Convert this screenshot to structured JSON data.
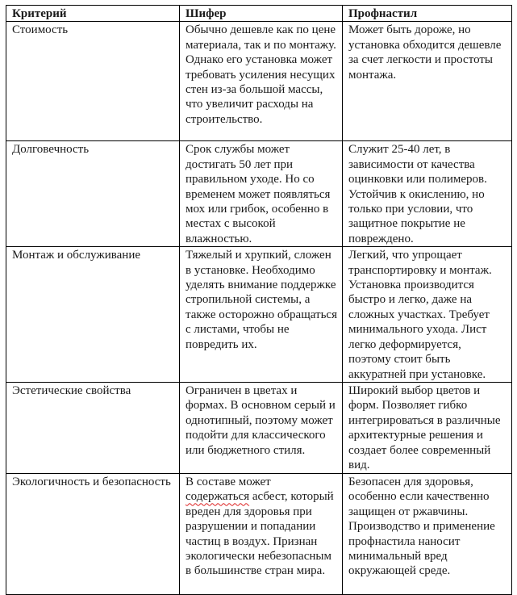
{
  "table": {
    "headers": [
      "Критерий",
      "Шифер",
      "Профнастил"
    ],
    "rows": [
      {
        "criterion": "Стоимость",
        "slate": "Обычно дешевле как по цене материала, так и по монтажу. Однако его установка может требовать усиления несущих стен из-за большой массы, что увеличит расходы на строительство.",
        "profiled": "Может быть дороже, но установка обходится дешевле за счет легкости и простоты монтажа."
      },
      {
        "criterion": "Долговечность",
        "slate": "Срок службы может достигать 50 лет при правильном уходе. Но со временем может появляться мох или грибок, особенно в местах с высокой влажностью.",
        "profiled": "Служит 25-40 лет, в зависимости от качества оцинковки или полимеров. Устойчив к окислению, но только при условии, что защитное покрытие не повреждено."
      },
      {
        "criterion": "Монтаж и обслуживание",
        "slate": "Тяжелый и хрупкий, сложен в установке. Необходимо уделять внимание поддержке стропильной системы, а также осторожно обращаться с листами, чтобы не повредить их.",
        "profiled": "Легкий, что упрощает транспортировку и монтаж. Установка производится быстро и легко, даже на сложных участках. Требует минимального ухода. Лист легко деформируется, поэтому стоит быть аккуратней при установке."
      },
      {
        "criterion": "Эстетические свойства",
        "slate": "Ограничен в цветах и формах. В основном серый и однотипный, поэтому может подойти для классического или бюджетного стиля.",
        "profiled": "Широкий выбор цветов и форм. Позволяет гибко интегрироваться в различные архитектурные решения и создает более современный вид."
      },
      {
        "criterion": "Экологичность и безопасность",
        "slate_pre": "В составе может ",
        "slate_spell": "содержаться",
        "slate_post": " асбест, который вреден для здоровья при разрушении и попадании частиц в воздух. Признан экологически небезопасным в большинстве стран мира.",
        "profiled": "Безопасен для здоровья, особенно если качественно защищен от ржавчины. Производство и применение профнастила наносит минимальный вред окружающей среде."
      }
    ]
  }
}
